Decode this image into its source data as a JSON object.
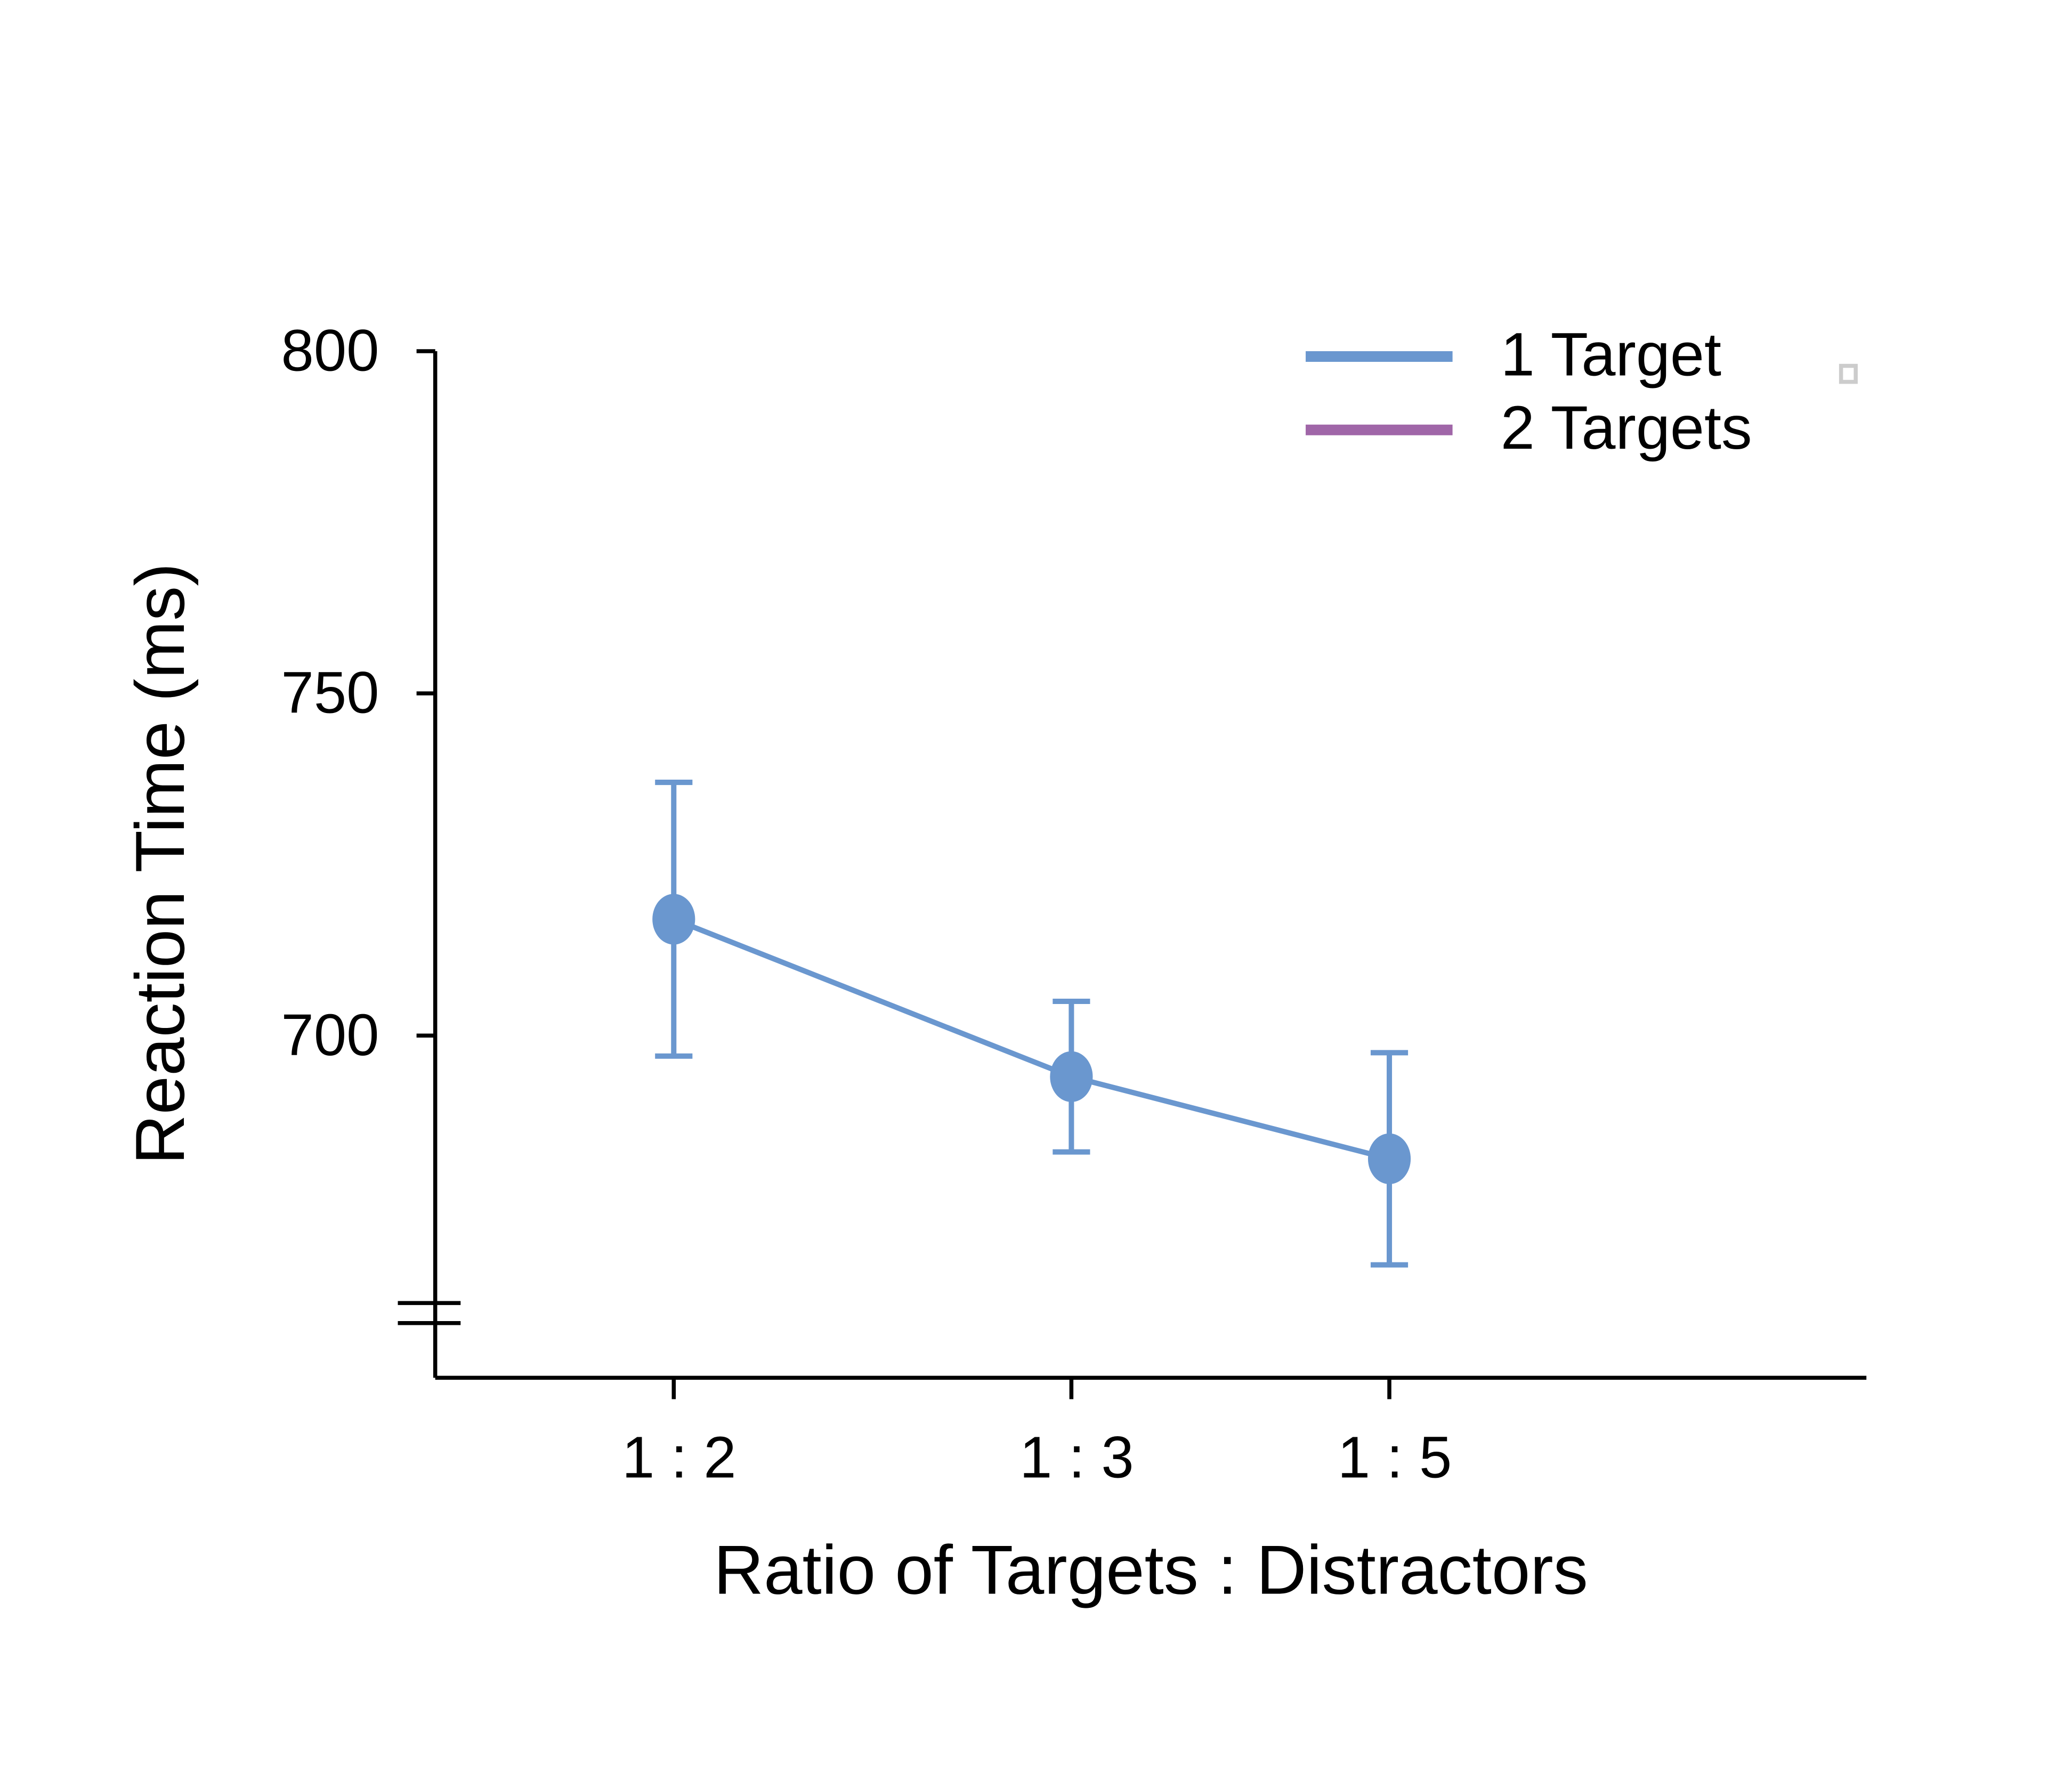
{
  "chart_data": {
    "type": "line",
    "xlabel": "Ratio of Targets : Distractors",
    "ylabel": "Reaction Time (ms)",
    "x": [
      0.5,
      0.3333,
      0.2
    ],
    "xlim": [
      0.6,
      0
    ],
    "xticks": [
      {
        "value": 0.5,
        "label": "1 : 2"
      },
      {
        "value": 0.3333,
        "label": "1 : 3"
      },
      {
        "value": 0.2,
        "label": "1 : 5"
      }
    ],
    "ylim": [
      650,
      800
    ],
    "yticks": [
      700,
      750,
      800
    ],
    "legend": "upper right",
    "series": [
      {
        "name": "1 Target",
        "color": "#6a97cf",
        "values": [
          717,
          694,
          682
        ],
        "errors": [
          20,
          11,
          15.5
        ]
      },
      {
        "name": "2 Targets",
        "color": "#a066a8",
        "values": [
          null,
          null,
          null
        ]
      }
    ]
  }
}
